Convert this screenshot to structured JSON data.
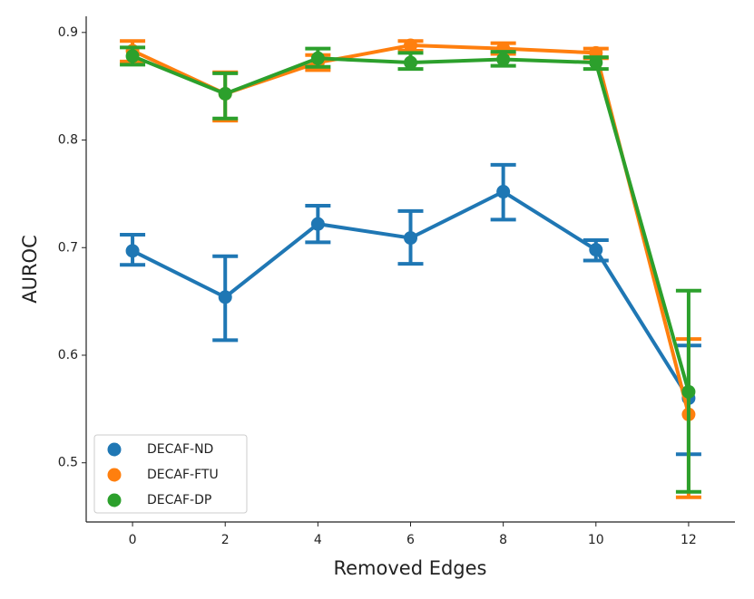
{
  "chart_data": {
    "type": "pointplot",
    "x_label": "Removed Edges",
    "y_label": "AUROC",
    "categories": [
      "0",
      "2",
      "4",
      "6",
      "8",
      "10",
      "12"
    ],
    "ylim": [
      0.445,
      0.915
    ],
    "yticks": [
      0.5,
      0.6,
      0.7,
      0.8,
      0.9
    ],
    "legend": "lower left",
    "series": [
      {
        "name": "DECAF-ND",
        "color": "#1f77b4",
        "values": [
          0.697,
          0.654,
          0.722,
          0.709,
          0.752,
          0.698,
          0.56
        ],
        "ci_low": [
          0.684,
          0.614,
          0.705,
          0.685,
          0.726,
          0.688,
          0.508
        ],
        "ci_high": [
          0.712,
          0.692,
          0.739,
          0.734,
          0.777,
          0.707,
          0.609
        ]
      },
      {
        "name": "DECAF-FTU",
        "color": "#ff7f0e",
        "values": [
          0.883,
          0.843,
          0.872,
          0.888,
          0.885,
          0.881,
          0.545
        ],
        "ci_low": [
          0.873,
          0.818,
          0.865,
          0.883,
          0.88,
          0.876,
          0.468
        ],
        "ci_high": [
          0.892,
          0.863,
          0.879,
          0.892,
          0.89,
          0.885,
          0.615
        ]
      },
      {
        "name": "DECAF-DP",
        "color": "#2ca02c",
        "values": [
          0.878,
          0.843,
          0.876,
          0.872,
          0.875,
          0.872,
          0.566
        ],
        "ci_low": [
          0.87,
          0.82,
          0.868,
          0.866,
          0.869,
          0.866,
          0.473
        ],
        "ci_high": [
          0.886,
          0.862,
          0.885,
          0.881,
          0.882,
          0.877,
          0.66
        ]
      }
    ]
  }
}
